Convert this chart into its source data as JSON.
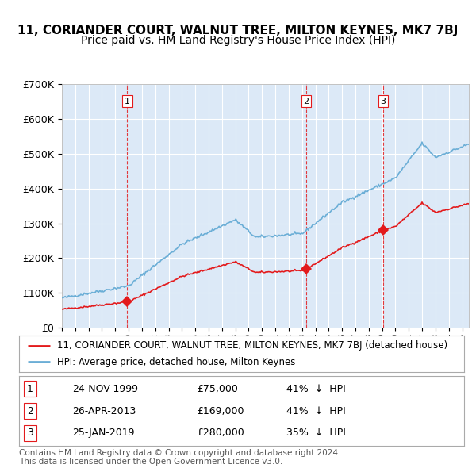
{
  "title": "11, CORIANDER COURT, WALNUT TREE, MILTON KEYNES, MK7 7BJ",
  "subtitle": "Price paid vs. HM Land Registry's House Price Index (HPI)",
  "ylim": [
    0,
    700000
  ],
  "yticks": [
    0,
    100000,
    200000,
    300000,
    400000,
    500000,
    600000,
    700000
  ],
  "ytick_labels": [
    "£0",
    "£100K",
    "£200K",
    "£300K",
    "£400K",
    "£500K",
    "£600K",
    "£700K"
  ],
  "xlim_start": 1995.0,
  "xlim_end": 2025.5,
  "background_color": "#dce9f7",
  "grid_color": "white",
  "hpi_color": "#6baed6",
  "price_color": "#e31a1c",
  "dashed_line_color": "#e31a1c",
  "legend_label_price": "11, CORIANDER COURT, WALNUT TREE, MILTON KEYNES, MK7 7BJ (detached house)",
  "legend_label_hpi": "HPI: Average price, detached house, Milton Keynes",
  "transactions": [
    {
      "num": 1,
      "date_num": 1999.9,
      "price": 75000,
      "label": "24-NOV-1999",
      "pct": "41%",
      "dir": "↓"
    },
    {
      "num": 2,
      "date_num": 2013.32,
      "price": 169000,
      "label": "26-APR-2013",
      "pct": "41%",
      "dir": "↓"
    },
    {
      "num": 3,
      "date_num": 2019.07,
      "price": 280000,
      "label": "25-JAN-2019",
      "pct": "35%",
      "dir": "↓"
    }
  ],
  "footer_line1": "Contains HM Land Registry data © Crown copyright and database right 2024.",
  "footer_line2": "This data is licensed under the Open Government Licence v3.0.",
  "title_fontsize": 11,
  "subtitle_fontsize": 10,
  "axis_fontsize": 9,
  "legend_fontsize": 8.5,
  "footer_fontsize": 7.5
}
